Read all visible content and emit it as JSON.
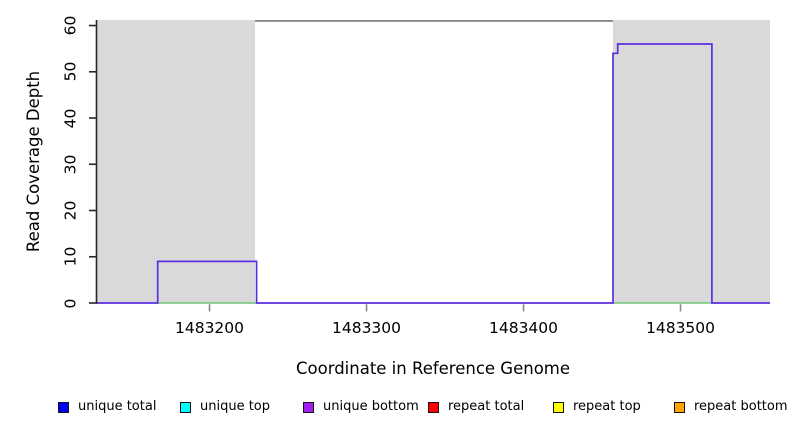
{
  "chart_data": {
    "type": "line",
    "description": "Step-style read coverage depth plot over a reference genome window, with gray shaded flanking regions and a bottom legend",
    "xlabel": "Coordinate in Reference Genome",
    "ylabel": "Read Coverage Depth",
    "xlim": [
      1483128,
      1483557
    ],
    "ylim": [
      0,
      61.2
    ],
    "x_ticks": [
      "1483200",
      "1483300",
      "1483400",
      "1483500"
    ],
    "x_tick_values": [
      1483200,
      1483300,
      1483400,
      1483500
    ],
    "y_ticks": [
      "0",
      "10",
      "20",
      "30",
      "40",
      "50",
      "60"
    ],
    "y_tick_values": [
      0,
      10,
      20,
      30,
      40,
      50,
      60
    ],
    "grid": false,
    "colors": {
      "shade": "#d9d9d9",
      "y_axis": "#262626",
      "x_axis_tick": "#8a8a8a",
      "unique_bottom_line": "#5b2ee1",
      "zero_overlap_line": "#77c47a",
      "overflow_line": "#8a8a8a"
    },
    "shaded_regions": [
      {
        "x0": 1483128,
        "x1": 1483229
      },
      {
        "x0": 1483457,
        "x1": 1483557
      }
    ],
    "overflow_line": {
      "y": 61,
      "segments": [
        [
          1483229,
          1483457
        ]
      ]
    },
    "series": [
      {
        "name": "unique bottom coverage",
        "color_key": "unique_bottom_line",
        "width": 1.7,
        "points": [
          [
            1483128,
            0
          ],
          [
            1483167,
            0
          ],
          [
            1483167,
            9
          ],
          [
            1483230,
            9
          ],
          [
            1483230,
            0
          ],
          [
            1483457,
            0
          ],
          [
            1483457,
            54
          ],
          [
            1483460,
            54
          ],
          [
            1483460,
            56
          ],
          [
            1483520,
            56
          ],
          [
            1483520,
            0
          ],
          [
            1483557,
            0
          ]
        ]
      },
      {
        "name": "zero-depth overlap trace",
        "color_key": "zero_overlap_line",
        "width": 1.6,
        "y": 0,
        "segments": [
          [
            1483167,
            1483230
          ],
          [
            1483457,
            1483520
          ]
        ]
      }
    ],
    "legend_position": "bottom",
    "legend": [
      {
        "label": "unique total",
        "color": "#0000ff"
      },
      {
        "label": "unique top",
        "color": "#00ffff"
      },
      {
        "label": "unique bottom",
        "color": "#a020f0"
      },
      {
        "label": "repeat total",
        "color": "#ff0000"
      },
      {
        "label": "repeat top",
        "color": "#ffff00"
      },
      {
        "label": "repeat bottom",
        "color": "#ffa500"
      }
    ]
  }
}
